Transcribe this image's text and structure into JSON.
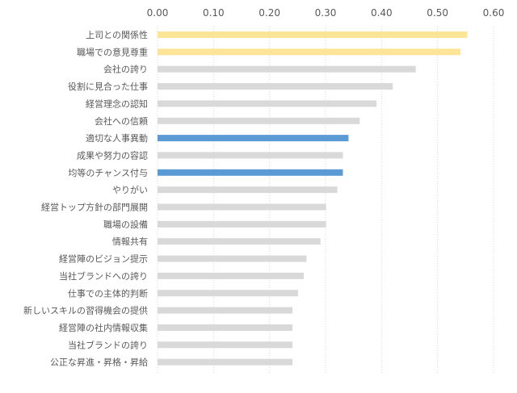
{
  "chart_data": {
    "type": "bar",
    "orientation": "horizontal",
    "xlim": [
      0,
      0.6
    ],
    "x_ticks": [
      "0.00",
      "0.10",
      "0.20",
      "0.30",
      "0.40",
      "0.50",
      "0.60"
    ],
    "x_tick_values": [
      0,
      0.1,
      0.2,
      0.3,
      0.4,
      0.5,
      0.6
    ],
    "x_axis_position": "top",
    "grid": "vertical dotted",
    "categories": [
      "上司との関係性",
      "職場での意見尊重",
      "会社の誇り",
      "役割に見合った仕事",
      "経営理念の認知",
      "会社への信頼",
      "適切な人事異動",
      "成果や努力の容認",
      "均等のチャンス付与",
      "やりがい",
      "経営トップ方針の部門展開",
      "職場の設備",
      "情報共有",
      "経営陣のビジョン提示",
      "当社ブランドへの誇り",
      "仕事での主体的判断",
      "新しいスキルの習得機会の提供",
      "経営陣の社内情報収集",
      "当社ブランドの誇り",
      "公正な昇進・昇格・昇給"
    ],
    "values": [
      0.553,
      0.541,
      0.461,
      0.42,
      0.391,
      0.361,
      0.341,
      0.331,
      0.331,
      0.321,
      0.301,
      0.301,
      0.291,
      0.266,
      0.261,
      0.251,
      0.241,
      0.241,
      0.241,
      0.241
    ],
    "bar_colors": [
      "#fde597",
      "#fde597",
      "#d9d9d9",
      "#d9d9d9",
      "#d9d9d9",
      "#d9d9d9",
      "#5b9bd5",
      "#d9d9d9",
      "#5b9bd5",
      "#d9d9d9",
      "#d9d9d9",
      "#d9d9d9",
      "#d9d9d9",
      "#d9d9d9",
      "#d9d9d9",
      "#d9d9d9",
      "#d9d9d9",
      "#d9d9d9",
      "#d9d9d9",
      "#d9d9d9"
    ],
    "colors": {
      "highlight_yellow": "#fde597",
      "highlight_blue": "#5b9bd5",
      "default": "#d9d9d9",
      "text": "#595959",
      "grid": "#d9d9d9"
    }
  }
}
